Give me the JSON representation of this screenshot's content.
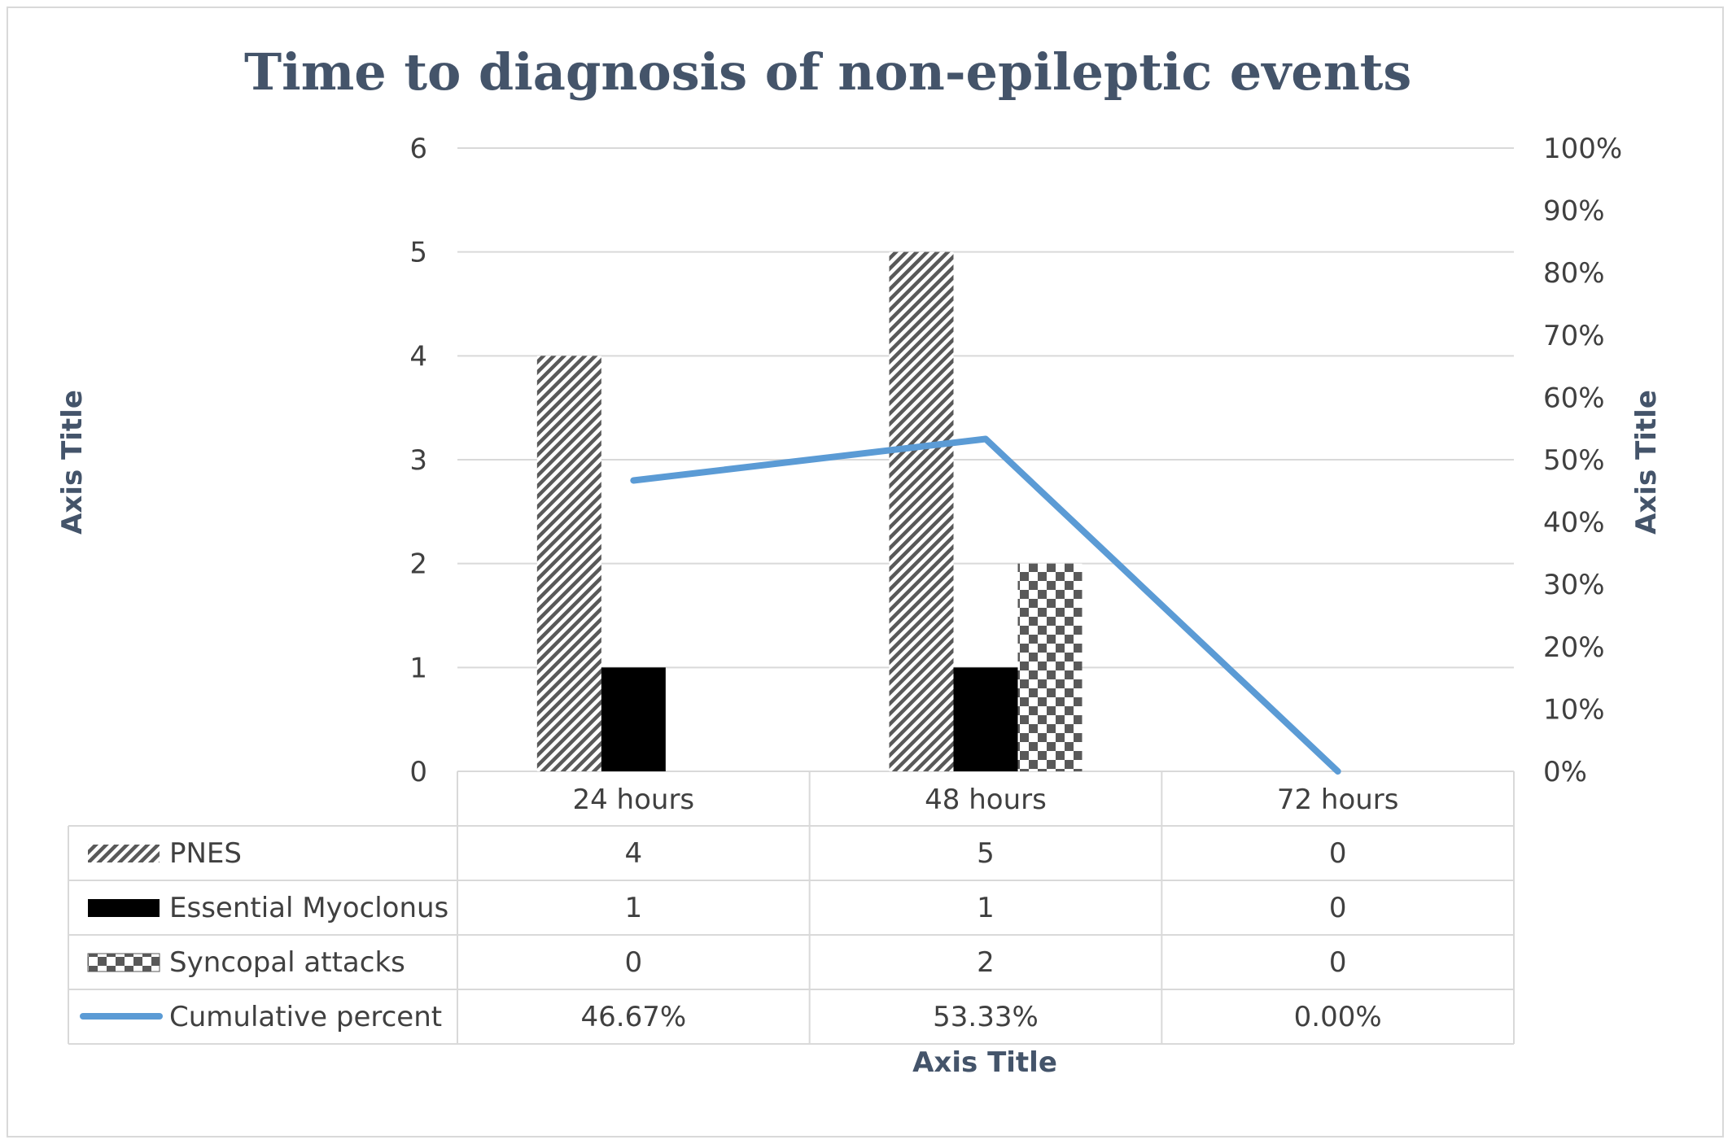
{
  "chart_data": {
    "type": "bar",
    "title": "Time to diagnosis of non-epileptic events",
    "xlabel": "Axis Title",
    "ylabel": "Axis Title",
    "y2label": "Axis Title",
    "categories": [
      "24 hours",
      "48 hours",
      "72 hours"
    ],
    "ylim": [
      0,
      6
    ],
    "yticks": [
      "0",
      "1",
      "2",
      "3",
      "4",
      "5",
      "6"
    ],
    "y2lim": [
      0,
      100
    ],
    "y2ticks": [
      "0%",
      "10%",
      "20%",
      "30%",
      "40%",
      "50%",
      "60%",
      "70%",
      "80%",
      "90%",
      "100%"
    ],
    "grid": true,
    "legend": "data table below chart",
    "series": [
      {
        "name": "PNES",
        "type": "bar",
        "pattern": "diagonal-stripes",
        "values": [
          4,
          5,
          0
        ],
        "labels": [
          "4",
          "5",
          "0"
        ]
      },
      {
        "name": "Essential Myoclonus",
        "type": "bar",
        "pattern": "solid-black",
        "values": [
          1,
          1,
          0
        ],
        "labels": [
          "1",
          "1",
          "0"
        ]
      },
      {
        "name": "Syncopal attacks",
        "type": "bar",
        "pattern": "checkerboard",
        "values": [
          0,
          2,
          0
        ],
        "labels": [
          "0",
          "2",
          "0"
        ]
      },
      {
        "name": "Cumulative percent",
        "type": "line",
        "axis": "secondary",
        "color": "#5b9bd5",
        "values": [
          46.67,
          53.33,
          0.0
        ],
        "labels": [
          "46.67%",
          "53.33%",
          "0.00%"
        ]
      }
    ]
  }
}
